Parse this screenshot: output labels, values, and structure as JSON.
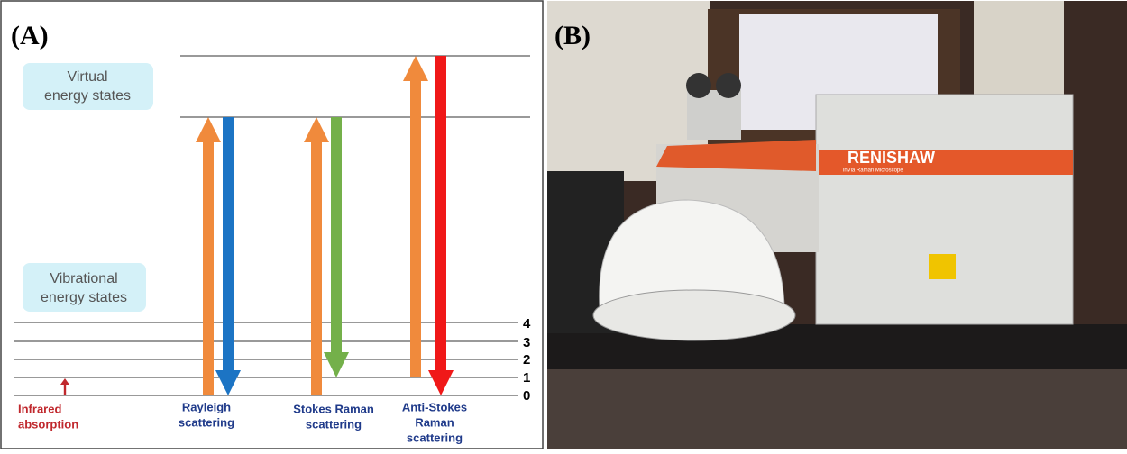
{
  "panel_a": {
    "label": "(A)",
    "virtual_label": [
      "Virtual",
      "energy states"
    ],
    "vibrational_label": [
      "Vibrational",
      "energy states"
    ],
    "levels": [
      "4",
      "3",
      "2",
      "1",
      "0"
    ],
    "processes": [
      {
        "label": [
          "Infrared",
          "absorption"
        ]
      },
      {
        "label": [
          "Rayleigh",
          "scattering"
        ]
      },
      {
        "label": [
          "Stokes Raman",
          "scattering"
        ]
      },
      {
        "label": [
          "Anti-Stokes",
          "Raman",
          "scattering"
        ]
      }
    ]
  },
  "panel_b": {
    "label": "(B)",
    "brand": "RENISHAW",
    "model": "inVia Raman Microscope"
  }
}
